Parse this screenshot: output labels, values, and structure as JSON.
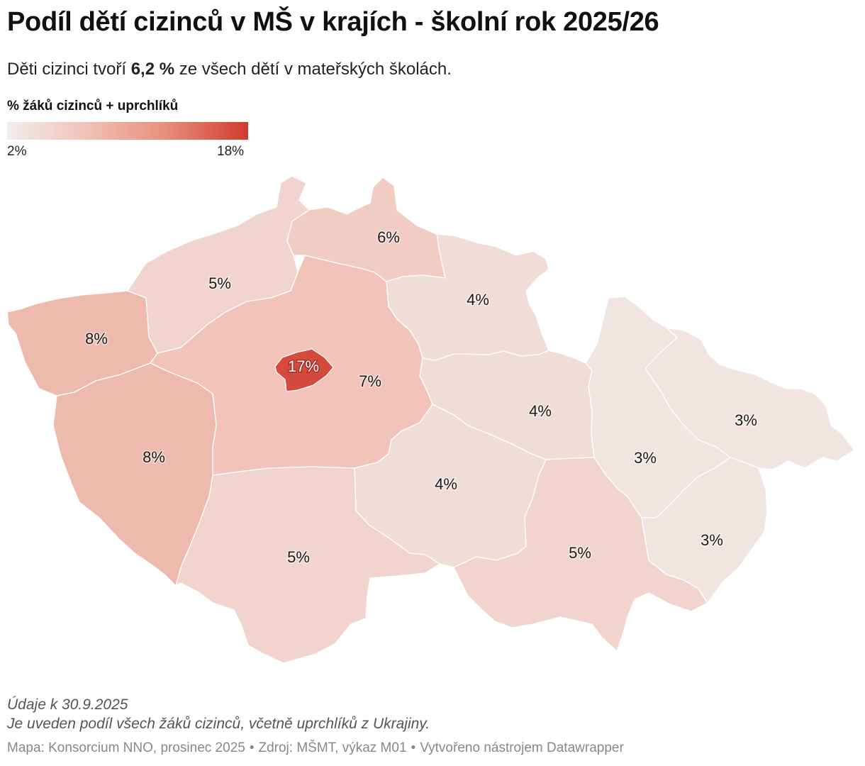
{
  "title": "Podíl dětí cizinců v MŠ v krajích - školní rok 2025/26",
  "subtitle": {
    "prefix": "Děti cizinci tvoří ",
    "highlight": "6,2 %",
    "suffix": " ze všech dětí v mateřských školách."
  },
  "legend": {
    "title": "% žáků cizinců + uprchlíků",
    "min_label": "2%",
    "max_label": "18%",
    "min_value": 2,
    "max_value": 18,
    "colors": [
      "#f1eeec",
      "#f1c5bb",
      "#e7907e",
      "#d03b2e"
    ]
  },
  "chart_data": {
    "type": "choropleth",
    "unit": "%",
    "range": [
      2,
      18
    ],
    "regions": [
      {
        "label": "8%",
        "value": 8
      },
      {
        "label": "5%",
        "value": 5
      },
      {
        "label": "6%",
        "value": 6
      },
      {
        "label": "4%",
        "value": 4
      },
      {
        "label": "17%",
        "value": 17
      },
      {
        "label": "7%",
        "value": 7
      },
      {
        "label": "8%",
        "value": 8
      },
      {
        "label": "4%",
        "value": 4
      },
      {
        "label": "4%",
        "value": 4
      },
      {
        "label": "5%",
        "value": 5
      },
      {
        "label": "5%",
        "value": 5
      },
      {
        "label": "3%",
        "value": 3
      },
      {
        "label": "3%",
        "value": 3
      },
      {
        "label": "3%",
        "value": 3
      }
    ]
  },
  "notes": {
    "date": "Údaje k 30.9.2025",
    "description": "Je uveden podíl všech žáků cizinců, včetně uprchlíků z Ukrajiny."
  },
  "credits": {
    "map": "Mapa: Konsorcium NNO, prosinec 2025",
    "source": "Zdroj: MŠMT, výkaz M01",
    "tool": "Vytvořeno nástrojem Datawrapper",
    "separator": "•"
  }
}
